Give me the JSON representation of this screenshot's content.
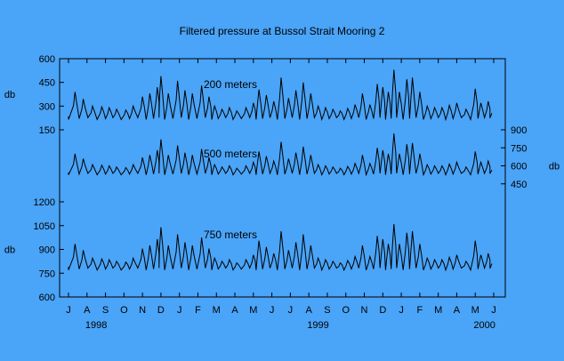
{
  "chart_data": {
    "type": "line",
    "title": "Filtered pressure at Bussol Strait Mooring 2",
    "grid": false,
    "background_color": "#4aa4f7",
    "line_color": "#000000",
    "x_months": [
      "J",
      "A",
      "S",
      "O",
      "N",
      "D",
      "J",
      "F",
      "M",
      "A",
      "M",
      "J",
      "J",
      "A",
      "S",
      "O",
      "N",
      "D",
      "J",
      "F",
      "M",
      "A",
      "M",
      "J"
    ],
    "x_years": [
      {
        "label": "1998",
        "month_index": 1.5
      },
      {
        "label": "1999",
        "month_index": 13.5
      },
      {
        "label": "2000",
        "month_index": 22.5
      }
    ],
    "x_range_months": [
      0,
      23
    ],
    "axes": [
      {
        "name": "top",
        "side": "left",
        "unit_label": "db",
        "ticks": [
          600,
          450,
          300,
          150
        ],
        "ylim": [
          150,
          600
        ]
      },
      {
        "name": "middle",
        "side": "right",
        "unit_label": "db",
        "ticks": [
          900,
          750,
          600,
          450
        ],
        "ylim": [
          300,
          900
        ]
      },
      {
        "name": "bottom",
        "side": "left",
        "unit_label": "db",
        "ticks": [
          1200,
          1050,
          900,
          750,
          600
        ],
        "ylim": [
          600,
          1200
        ]
      }
    ],
    "series": [
      {
        "name": "200 meters",
        "axis": "top",
        "base": 215,
        "scale": 1.0,
        "peaks": [
          [
            0.35,
            390
          ],
          [
            0.8,
            345
          ],
          [
            1.3,
            300
          ],
          [
            1.8,
            295
          ],
          [
            2.2,
            290
          ],
          [
            2.6,
            280
          ],
          [
            3.1,
            275
          ],
          [
            3.5,
            300
          ],
          [
            4.0,
            360
          ],
          [
            4.4,
            380
          ],
          [
            4.8,
            420
          ],
          [
            5.0,
            490
          ],
          [
            5.4,
            380
          ],
          [
            5.9,
            460
          ],
          [
            6.3,
            400
          ],
          [
            6.7,
            380
          ],
          [
            7.2,
            430
          ],
          [
            7.6,
            360
          ],
          [
            7.9,
            300
          ],
          [
            8.3,
            280
          ],
          [
            8.7,
            290
          ],
          [
            9.1,
            270
          ],
          [
            9.6,
            290
          ],
          [
            10.0,
            320
          ],
          [
            10.3,
            405
          ],
          [
            10.7,
            370
          ],
          [
            11.1,
            330
          ],
          [
            11.5,
            480
          ],
          [
            11.9,
            350
          ],
          [
            12.3,
            400
          ],
          [
            12.7,
            450
          ],
          [
            13.1,
            380
          ],
          [
            13.5,
            300
          ],
          [
            13.9,
            290
          ],
          [
            14.3,
            280
          ],
          [
            14.7,
            270
          ],
          [
            15.1,
            285
          ],
          [
            15.5,
            310
          ],
          [
            15.9,
            380
          ],
          [
            16.3,
            310
          ],
          [
            16.7,
            440
          ],
          [
            17.0,
            420
          ],
          [
            17.3,
            390
          ],
          [
            17.6,
            530
          ],
          [
            17.9,
            390
          ],
          [
            18.3,
            470
          ],
          [
            18.6,
            480
          ],
          [
            19.0,
            390
          ],
          [
            19.4,
            300
          ],
          [
            19.8,
            290
          ],
          [
            20.2,
            290
          ],
          [
            20.6,
            305
          ],
          [
            21.0,
            320
          ],
          [
            21.5,
            280
          ],
          [
            22.0,
            410
          ],
          [
            22.3,
            320
          ],
          [
            22.7,
            330
          ]
        ]
      },
      {
        "name": "500 meters",
        "axis": "middle",
        "base": 525,
        "scale": 1.05,
        "peaks": [
          [
            0.35,
            700
          ],
          [
            0.8,
            660
          ],
          [
            1.3,
            610
          ],
          [
            1.8,
            605
          ],
          [
            2.2,
            600
          ],
          [
            2.6,
            590
          ],
          [
            3.1,
            585
          ],
          [
            3.5,
            610
          ],
          [
            4.0,
            670
          ],
          [
            4.4,
            690
          ],
          [
            4.8,
            730
          ],
          [
            5.0,
            820
          ],
          [
            5.4,
            690
          ],
          [
            5.9,
            770
          ],
          [
            6.3,
            710
          ],
          [
            6.7,
            690
          ],
          [
            7.2,
            740
          ],
          [
            7.6,
            670
          ],
          [
            7.9,
            610
          ],
          [
            8.3,
            590
          ],
          [
            8.7,
            600
          ],
          [
            9.1,
            580
          ],
          [
            9.6,
            600
          ],
          [
            10.0,
            630
          ],
          [
            10.3,
            720
          ],
          [
            10.7,
            680
          ],
          [
            11.1,
            640
          ],
          [
            11.5,
            800
          ],
          [
            11.9,
            660
          ],
          [
            12.3,
            710
          ],
          [
            12.7,
            760
          ],
          [
            13.1,
            690
          ],
          [
            13.5,
            610
          ],
          [
            13.9,
            600
          ],
          [
            14.3,
            590
          ],
          [
            14.7,
            580
          ],
          [
            15.1,
            595
          ],
          [
            15.5,
            620
          ],
          [
            15.9,
            690
          ],
          [
            16.3,
            620
          ],
          [
            16.7,
            750
          ],
          [
            17.0,
            730
          ],
          [
            17.3,
            700
          ],
          [
            17.6,
            870
          ],
          [
            17.9,
            700
          ],
          [
            18.3,
            780
          ],
          [
            18.6,
            790
          ],
          [
            19.0,
            700
          ],
          [
            19.4,
            610
          ],
          [
            19.8,
            600
          ],
          [
            20.2,
            600
          ],
          [
            20.6,
            615
          ],
          [
            21.0,
            630
          ],
          [
            21.5,
            590
          ],
          [
            22.0,
            720
          ],
          [
            22.3,
            630
          ],
          [
            22.7,
            640
          ]
        ]
      },
      {
        "name": "750 meters",
        "axis": "bottom",
        "base": 770,
        "scale": 1.0,
        "peaks": [
          [
            0.35,
            935
          ],
          [
            0.8,
            895
          ],
          [
            1.3,
            845
          ],
          [
            1.8,
            840
          ],
          [
            2.2,
            835
          ],
          [
            2.6,
            825
          ],
          [
            3.1,
            820
          ],
          [
            3.5,
            845
          ],
          [
            4.0,
            905
          ],
          [
            4.4,
            925
          ],
          [
            4.8,
            965
          ],
          [
            5.0,
            1040
          ],
          [
            5.4,
            925
          ],
          [
            5.9,
            995
          ],
          [
            6.3,
            945
          ],
          [
            6.7,
            925
          ],
          [
            7.2,
            975
          ],
          [
            7.6,
            905
          ],
          [
            7.9,
            845
          ],
          [
            8.3,
            825
          ],
          [
            8.7,
            835
          ],
          [
            9.1,
            815
          ],
          [
            9.6,
            835
          ],
          [
            10.0,
            865
          ],
          [
            10.3,
            955
          ],
          [
            10.7,
            915
          ],
          [
            11.1,
            875
          ],
          [
            11.5,
            1015
          ],
          [
            11.9,
            895
          ],
          [
            12.3,
            945
          ],
          [
            12.7,
            995
          ],
          [
            13.1,
            925
          ],
          [
            13.5,
            845
          ],
          [
            13.9,
            835
          ],
          [
            14.3,
            825
          ],
          [
            14.7,
            815
          ],
          [
            15.1,
            830
          ],
          [
            15.5,
            855
          ],
          [
            15.9,
            925
          ],
          [
            16.3,
            855
          ],
          [
            16.7,
            985
          ],
          [
            17.0,
            965
          ],
          [
            17.3,
            935
          ],
          [
            17.6,
            1060
          ],
          [
            17.9,
            935
          ],
          [
            18.3,
            1005
          ],
          [
            18.6,
            1015
          ],
          [
            19.0,
            935
          ],
          [
            19.4,
            845
          ],
          [
            19.8,
            835
          ],
          [
            20.2,
            835
          ],
          [
            20.6,
            850
          ],
          [
            21.0,
            865
          ],
          [
            21.5,
            825
          ],
          [
            22.0,
            955
          ],
          [
            22.3,
            865
          ],
          [
            22.7,
            875
          ]
        ]
      }
    ]
  }
}
